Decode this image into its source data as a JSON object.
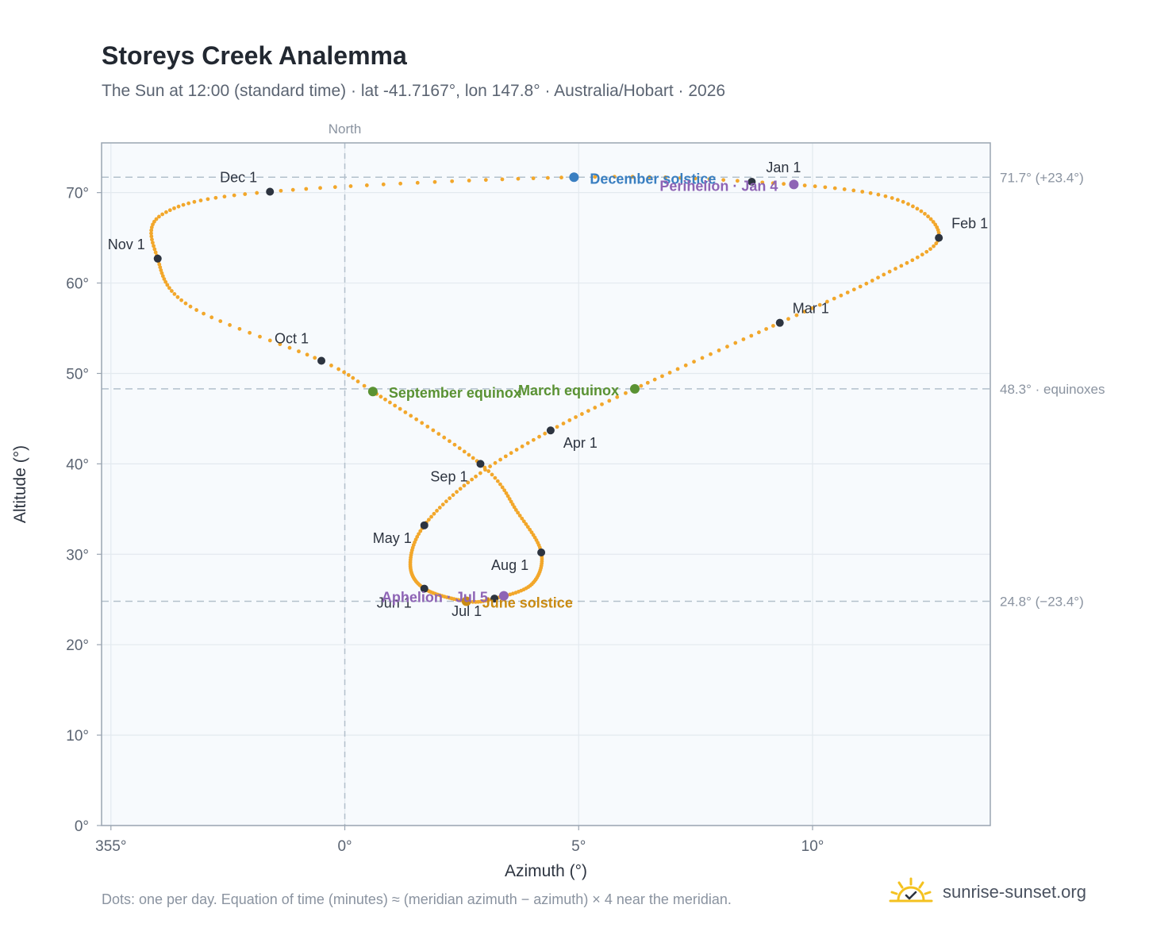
{
  "title": "Storeys Creek Analemma",
  "subtitle": "The Sun at 12:00 (standard time) · lat -41.7167°, lon 147.8° · Australia/Hobart · 2026",
  "footnote": "Dots: one per day. Equation of time (minutes) ≈ (meridian azimuth − azimuth) × 4 near the meridian.",
  "brand": "sunrise-sunset.org",
  "colors": {
    "path": "#f2a72b",
    "month_marker": "#2d3440",
    "december_solstice": "#3a7fc1",
    "june_solstice": "#c98a12",
    "equinox": "#5a9233",
    "perihelion_aphelion": "#8e64b5",
    "ref_line": "#b3c0cc",
    "plot_bg": "#f7fafd",
    "grid": "#e3e9ef"
  },
  "chart_data": {
    "type": "scatter",
    "xlabel": "Azimuth (°)",
    "ylabel": "Altitude (°)",
    "xlim": [
      354.8,
      13.8
    ],
    "ylim": [
      0,
      75.5
    ],
    "x_ticks": [
      "355°",
      "0°",
      "5°",
      "10°"
    ],
    "y_ticks": [
      "0°",
      "10°",
      "20°",
      "30°",
      "40°",
      "50°",
      "60°",
      "70°"
    ],
    "grid": true,
    "meridian_label": "North",
    "reference_lines": [
      {
        "y": 71.7,
        "label": "71.7° (+23.4°)"
      },
      {
        "y": 48.3,
        "label": "48.3° · equinoxes"
      },
      {
        "y": 24.8,
        "label": "24.8° (−23.4°)"
      }
    ],
    "path_anchors": [
      {
        "doy": 1,
        "az": 8.7,
        "alt": 71.2
      },
      {
        "doy": 16,
        "az": 11.7,
        "alt": 69.4
      },
      {
        "doy": 32,
        "az": 12.7,
        "alt": 65.0
      },
      {
        "doy": 46,
        "az": 11.4,
        "alt": 60.6
      },
      {
        "doy": 60,
        "az": 9.3,
        "alt": 55.6
      },
      {
        "doy": 79,
        "az": 6.2,
        "alt": 48.3
      },
      {
        "doy": 91,
        "az": 4.4,
        "alt": 43.7
      },
      {
        "doy": 105,
        "az": 2.8,
        "alt": 38.6
      },
      {
        "doy": 121,
        "az": 1.7,
        "alt": 33.2
      },
      {
        "doy": 136,
        "az": 1.4,
        "alt": 28.9
      },
      {
        "doy": 152,
        "az": 1.7,
        "alt": 26.2
      },
      {
        "doy": 172,
        "az": 2.6,
        "alt": 24.8
      },
      {
        "doy": 182,
        "az": 3.2,
        "alt": 25.1
      },
      {
        "doy": 197,
        "az": 4.0,
        "alt": 26.7
      },
      {
        "doy": 213,
        "az": 4.2,
        "alt": 30.2
      },
      {
        "doy": 228,
        "az": 3.7,
        "alt": 34.6
      },
      {
        "doy": 244,
        "az": 2.9,
        "alt": 40.0
      },
      {
        "doy": 266,
        "az": 0.6,
        "alt": 48.0
      },
      {
        "doy": 274,
        "az": -0.5,
        "alt": 51.4
      },
      {
        "doy": 289,
        "az": -3.3,
        "alt": 57.4
      },
      {
        "doy": 305,
        "az": -4.0,
        "alt": 62.7
      },
      {
        "doy": 320,
        "az": -3.9,
        "alt": 67.6
      },
      {
        "doy": 335,
        "az": -1.6,
        "alt": 70.1
      },
      {
        "doy": 355,
        "az": 4.9,
        "alt": 71.7
      },
      {
        "doy": 366,
        "az": 8.7,
        "alt": 71.2
      }
    ],
    "month_markers": [
      {
        "label": "Jan 1",
        "az": 8.7,
        "alt": 71.2,
        "anchor": "middle",
        "dx": 40,
        "dy": -12
      },
      {
        "label": "Feb 1",
        "az": 12.7,
        "alt": 65.0,
        "anchor": "start",
        "dx": 16,
        "dy": -12
      },
      {
        "label": "Mar 1",
        "az": 9.3,
        "alt": 55.6,
        "anchor": "start",
        "dx": 16,
        "dy": -12
      },
      {
        "label": "Apr 1",
        "az": 4.4,
        "alt": 43.7,
        "anchor": "start",
        "dx": 16,
        "dy": 22
      },
      {
        "label": "May 1",
        "az": 1.7,
        "alt": 33.2,
        "anchor": "end",
        "dx": -16,
        "dy": 22
      },
      {
        "label": "Jun 1",
        "az": 1.7,
        "alt": 26.2,
        "anchor": "end",
        "dx": -16,
        "dy": 24
      },
      {
        "label": "Jul 1",
        "az": 3.2,
        "alt": 25.1,
        "anchor": "end",
        "dx": -16,
        "dy": 22
      },
      {
        "label": "Aug 1",
        "az": 4.2,
        "alt": 30.2,
        "anchor": "end",
        "dx": -16,
        "dy": 22
      },
      {
        "label": "Sep 1",
        "az": 2.9,
        "alt": 40.0,
        "anchor": "end",
        "dx": -16,
        "dy": 22
      },
      {
        "label": "Oct 1",
        "az": -0.5,
        "alt": 51.4,
        "anchor": "end",
        "dx": -16,
        "dy": -22
      },
      {
        "label": "Nov 1",
        "az": -4.0,
        "alt": 62.7,
        "anchor": "end",
        "dx": -16,
        "dy": -12
      },
      {
        "label": "Dec 1",
        "az": -1.6,
        "alt": 70.1,
        "anchor": "end",
        "dx": -16,
        "dy": -12
      }
    ],
    "events": [
      {
        "label": "December solstice",
        "az": 4.9,
        "alt": 71.7,
        "color_key": "december_solstice",
        "anchor": "start",
        "dx": 20,
        "dy": 8
      },
      {
        "label": "Perihelion · Jan 4",
        "az": 9.6,
        "alt": 70.9,
        "color_key": "perihelion_aphelion",
        "anchor": "end",
        "dx": -20,
        "dy": 8
      },
      {
        "label": "March equinox",
        "az": 6.2,
        "alt": 48.3,
        "color_key": "equinox",
        "anchor": "end",
        "dx": -20,
        "dy": 8
      },
      {
        "label": "September equinox",
        "az": 0.6,
        "alt": 48.0,
        "color_key": "equinox",
        "anchor": "start",
        "dx": 20,
        "dy": 8
      },
      {
        "label": "June solstice",
        "az": 2.6,
        "alt": 24.8,
        "color_key": "june_solstice",
        "anchor": "start",
        "dx": 20,
        "dy": 8
      },
      {
        "label": "Aphelion · Jul 5",
        "az": 3.4,
        "alt": 25.4,
        "color_key": "perihelion_aphelion",
        "anchor": "end",
        "dx": -20,
        "dy": 8
      }
    ]
  }
}
